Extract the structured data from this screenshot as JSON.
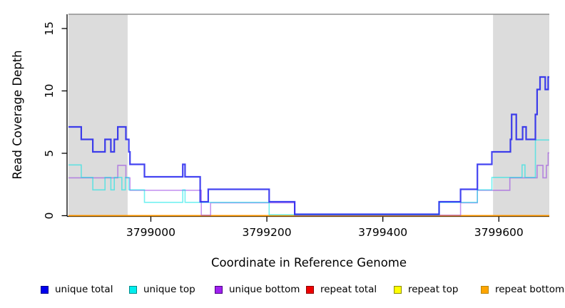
{
  "axes": {
    "x": {
      "label": "Coordinate in Reference Genome",
      "tick_values": [
        3799000,
        3799200,
        3799400,
        3799600
      ],
      "tick_labels": [
        "3799000",
        "3799200",
        "3799400",
        "3799600"
      ],
      "range": [
        3798858,
        3799687
      ]
    },
    "y": {
      "label": "Read Coverage Depth",
      "tick_values": [
        0,
        5,
        10,
        15
      ],
      "tick_labels": [
        "0",
        "5",
        "10",
        "15"
      ],
      "range": [
        0,
        16.1
      ]
    }
  },
  "legend": {
    "items": [
      {
        "label": "unique total",
        "fill": "#0000EE",
        "border": "#00008B"
      },
      {
        "label": "unique top",
        "fill": "#00EEEE",
        "border": "#008B8B"
      },
      {
        "label": "unique bottom",
        "fill": "#A020F0",
        "border": "#4B0082"
      },
      {
        "label": "repeat total",
        "fill": "#EE0000",
        "border": "#8B0000"
      },
      {
        "label": "repeat top",
        "fill": "#FFFF00",
        "border": "#8B8B00"
      },
      {
        "label": "repeat bottom",
        "fill": "#FFA500",
        "border": "#B8860B"
      }
    ]
  },
  "chart_data": {
    "type": "line",
    "subtype": "step-after",
    "title": "",
    "xlabel": "Coordinate in Reference Genome",
    "ylabel": "Read Coverage Depth",
    "x_range": [
      3798858,
      3799687
    ],
    "ylim": [
      0,
      16.1
    ],
    "grid": false,
    "legend_position": "bottom",
    "shaded_regions": [
      {
        "name": "left-flank",
        "x0": 3798858,
        "x1": 3798960,
        "color": "#DCDCDC"
      },
      {
        "name": "right-flank",
        "x0": 3799590,
        "x1": 3799687,
        "color": "#DCDCDC"
      }
    ],
    "top_border_color": "#8F8F8F",
    "series": [
      {
        "name": "unique total",
        "color": "#1414EE",
        "points": [
          [
            3798858,
            7
          ],
          [
            3798880,
            6
          ],
          [
            3798900,
            5
          ],
          [
            3798921,
            6
          ],
          [
            3798931,
            5
          ],
          [
            3798937,
            6
          ],
          [
            3798943,
            7
          ],
          [
            3798957,
            6
          ],
          [
            3798962,
            5
          ],
          [
            3798964,
            4
          ],
          [
            3798989,
            3
          ],
          [
            3799055,
            4
          ],
          [
            3799059,
            3
          ],
          [
            3799085,
            1
          ],
          [
            3799099,
            2
          ],
          [
            3799204,
            1
          ],
          [
            3799248,
            0
          ],
          [
            3799497,
            1
          ],
          [
            3799534,
            2
          ],
          [
            3799563,
            4
          ],
          [
            3799588,
            5
          ],
          [
            3799620,
            6
          ],
          [
            3799622,
            8
          ],
          [
            3799630,
            6
          ],
          [
            3799641,
            7
          ],
          [
            3799647,
            6
          ],
          [
            3799663,
            8
          ],
          [
            3799666,
            10
          ],
          [
            3799671,
            11
          ],
          [
            3799680,
            10
          ],
          [
            3799685,
            11
          ],
          [
            3799687,
            11
          ]
        ]
      },
      {
        "name": "unique top",
        "color": "#00E5E5",
        "points": [
          [
            3798858,
            4
          ],
          [
            3798880,
            3
          ],
          [
            3798900,
            2
          ],
          [
            3798921,
            3
          ],
          [
            3798931,
            2
          ],
          [
            3798937,
            3
          ],
          [
            3798950,
            2
          ],
          [
            3798956,
            3
          ],
          [
            3798962,
            2
          ],
          [
            3798989,
            1
          ],
          [
            3799055,
            2
          ],
          [
            3799059,
            1
          ],
          [
            3799204,
            0
          ],
          [
            3799497,
            1
          ],
          [
            3799563,
            2
          ],
          [
            3799588,
            3
          ],
          [
            3799640,
            4
          ],
          [
            3799645,
            3
          ],
          [
            3799663,
            6
          ],
          [
            3799687,
            6
          ]
        ]
      },
      {
        "name": "unique bottom",
        "color": "#8B2BE2",
        "points": [
          [
            3798858,
            3
          ],
          [
            3798943,
            4
          ],
          [
            3798957,
            3
          ],
          [
            3798964,
            2
          ],
          [
            3799087,
            0
          ],
          [
            3799103,
            1
          ],
          [
            3799248,
            0
          ],
          [
            3799534,
            1
          ],
          [
            3799563,
            2
          ],
          [
            3799619,
            3
          ],
          [
            3799666,
            4
          ],
          [
            3799676,
            3
          ],
          [
            3799682,
            4
          ],
          [
            3799685,
            5
          ],
          [
            3799687,
            5
          ]
        ]
      },
      {
        "name": "repeat total",
        "color": "#EE0000",
        "points": [
          [
            3798858,
            0
          ],
          [
            3799687,
            0
          ]
        ]
      },
      {
        "name": "repeat top",
        "color": "#FFFF00",
        "points": [
          [
            3798858,
            0
          ],
          [
            3799687,
            0
          ]
        ]
      },
      {
        "name": "repeat bottom",
        "color": "#FF9900",
        "points": [
          [
            3798858,
            0
          ],
          [
            3799687,
            0
          ]
        ]
      }
    ]
  }
}
